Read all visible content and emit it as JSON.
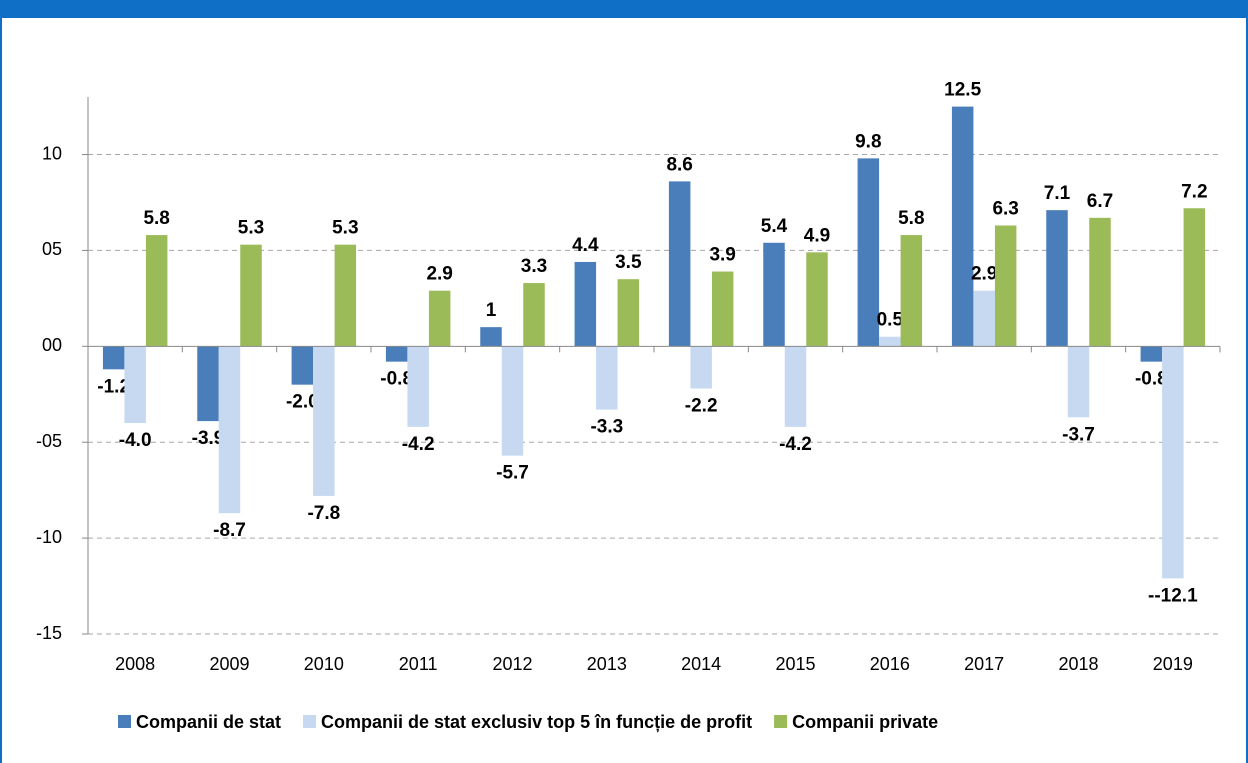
{
  "chart_data": {
    "type": "bar",
    "categories": [
      "2008",
      "2009",
      "2010",
      "2011",
      "2012",
      "2013",
      "2014",
      "2015",
      "2016",
      "2017",
      "2018",
      "2019"
    ],
    "series": [
      {
        "name": "Companii de stat",
        "color": "#4a7ebb",
        "values": [
          -1.2,
          -3.9,
          -2.0,
          -0.8,
          1,
          4.4,
          8.6,
          5.4,
          9.8,
          12.5,
          7.1,
          -0.8
        ],
        "value_labels": [
          "-1.2",
          "-3.9",
          "-2.0",
          "-0.8",
          "1",
          "4.4",
          "8.6",
          "5.4",
          "9.8",
          "12.5",
          "7.1",
          "-0.8"
        ]
      },
      {
        "name": "Companii de stat exclusiv top 5 în funcție de profit",
        "color": "#c6d9f1",
        "values": [
          -4.0,
          -8.7,
          -7.8,
          -4.2,
          -5.7,
          -3.3,
          -2.2,
          -4.2,
          0.5,
          2.9,
          -3.7,
          -12.1
        ],
        "value_labels": [
          "-4.0",
          "-8.7",
          "-7.8",
          "-4.2",
          "-5.7",
          "-3.3",
          "-2.2",
          "-4.2",
          "0.5",
          "2.9",
          "-3.7",
          "--12.1"
        ]
      },
      {
        "name": "Companii private",
        "color": "#9bbb59",
        "values": [
          5.8,
          5.3,
          5.3,
          2.9,
          3.3,
          3.5,
          3.9,
          4.9,
          5.8,
          6.3,
          6.7,
          7.2
        ],
        "value_labels": [
          "5.8",
          "5.3",
          "5.3",
          "2.9",
          "3.3",
          "3.5",
          "3.9",
          "4.9",
          "5.8",
          "6.3",
          "6.7",
          "7.2"
        ]
      }
    ],
    "ylim": [
      -15,
      13
    ],
    "yticks": [
      {
        "value": -15,
        "label": "-15"
      },
      {
        "value": -10,
        "label": "-10"
      },
      {
        "value": -5,
        "label": "-05"
      },
      {
        "value": 0,
        "label": "00"
      },
      {
        "value": 5,
        "label": "05"
      },
      {
        "value": 10,
        "label": "10"
      }
    ],
    "grid": true,
    "legend": "bottom"
  }
}
